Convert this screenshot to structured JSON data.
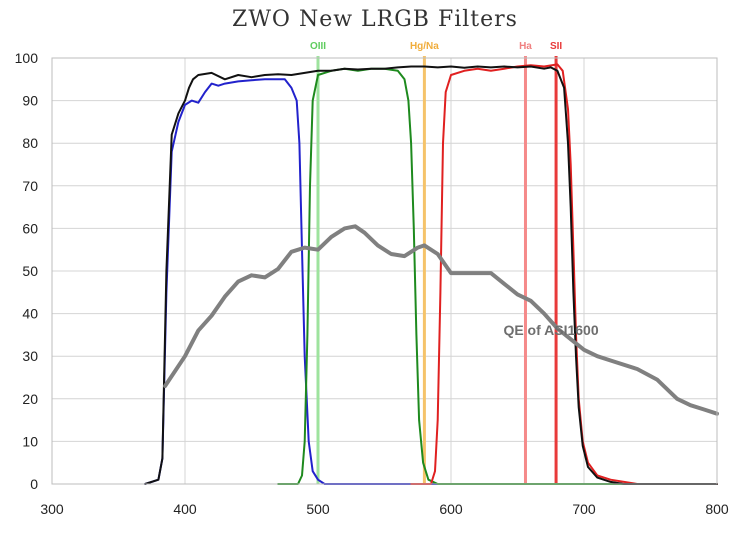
{
  "chart_data": {
    "type": "line",
    "title": "ZWO New LRGB Filters",
    "xlabel": "",
    "ylabel": "",
    "xlim": [
      300,
      800
    ],
    "ylim": [
      0,
      100
    ],
    "x_ticks": [
      300,
      400,
      500,
      600,
      700,
      800
    ],
    "y_ticks": [
      0,
      10,
      20,
      30,
      40,
      50,
      60,
      70,
      80,
      90,
      100
    ],
    "grid": true,
    "legend": "none",
    "series": [
      {
        "color": "#2222cc",
        "points": [
          [
            370,
            0
          ],
          [
            380,
            1
          ],
          [
            383,
            6
          ],
          [
            386,
            45
          ],
          [
            390,
            78
          ],
          [
            395,
            85
          ],
          [
            400,
            89
          ],
          [
            405,
            90
          ],
          [
            410,
            89.5
          ],
          [
            415,
            92
          ],
          [
            420,
            94
          ],
          [
            425,
            93.5
          ],
          [
            430,
            94
          ],
          [
            440,
            94.5
          ],
          [
            450,
            94.8
          ],
          [
            460,
            95
          ],
          [
            470,
            95
          ],
          [
            475,
            95
          ],
          [
            480,
            93
          ],
          [
            484,
            90
          ],
          [
            486,
            80
          ],
          [
            488,
            55
          ],
          [
            490,
            30
          ],
          [
            493,
            10
          ],
          [
            496,
            3
          ],
          [
            500,
            1
          ],
          [
            505,
            0
          ],
          [
            800,
            0
          ]
        ]
      },
      {
        "color": "#1e8a1e",
        "points": [
          [
            470,
            0
          ],
          [
            485,
            0
          ],
          [
            488,
            2
          ],
          [
            490,
            10
          ],
          [
            492,
            35
          ],
          [
            494,
            70
          ],
          [
            496,
            90
          ],
          [
            500,
            96
          ],
          [
            510,
            97
          ],
          [
            520,
            97.5
          ],
          [
            530,
            97
          ],
          [
            540,
            97.5
          ],
          [
            550,
            97.5
          ],
          [
            560,
            97
          ],
          [
            565,
            95
          ],
          [
            568,
            90
          ],
          [
            570,
            80
          ],
          [
            572,
            60
          ],
          [
            574,
            35
          ],
          [
            576,
            15
          ],
          [
            579,
            5
          ],
          [
            583,
            1
          ],
          [
            590,
            0
          ],
          [
            800,
            0
          ]
        ]
      },
      {
        "color": "#e02020",
        "points": [
          [
            570,
            0
          ],
          [
            585,
            0
          ],
          [
            588,
            3
          ],
          [
            590,
            15
          ],
          [
            592,
            45
          ],
          [
            594,
            80
          ],
          [
            596,
            92
          ],
          [
            600,
            96
          ],
          [
            610,
            97
          ],
          [
            620,
            97.5
          ],
          [
            630,
            97
          ],
          [
            640,
            97.5
          ],
          [
            650,
            98
          ],
          [
            660,
            98.3
          ],
          [
            670,
            98
          ],
          [
            680,
            98.5
          ],
          [
            684,
            97
          ],
          [
            688,
            88
          ],
          [
            690,
            75
          ],
          [
            692,
            55
          ],
          [
            694,
            35
          ],
          [
            696,
            20
          ],
          [
            699,
            10
          ],
          [
            703,
            5
          ],
          [
            710,
            2
          ],
          [
            720,
            1
          ],
          [
            740,
            0
          ],
          [
            800,
            0
          ]
        ]
      },
      {
        "color": "#111111",
        "points": [
          [
            370,
            0
          ],
          [
            380,
            1
          ],
          [
            383,
            6
          ],
          [
            386,
            50
          ],
          [
            390,
            82
          ],
          [
            395,
            87
          ],
          [
            400,
            90
          ],
          [
            403,
            93
          ],
          [
            406,
            95
          ],
          [
            410,
            96
          ],
          [
            420,
            96.5
          ],
          [
            430,
            95
          ],
          [
            440,
            96
          ],
          [
            450,
            95.5
          ],
          [
            460,
            96
          ],
          [
            470,
            96.2
          ],
          [
            480,
            96
          ],
          [
            490,
            96.5
          ],
          [
            500,
            97
          ],
          [
            510,
            97
          ],
          [
            520,
            97.5
          ],
          [
            530,
            97.3
          ],
          [
            540,
            97.5
          ],
          [
            550,
            97.5
          ],
          [
            560,
            97.8
          ],
          [
            570,
            98
          ],
          [
            580,
            98
          ],
          [
            590,
            97.8
          ],
          [
            600,
            98
          ],
          [
            610,
            97.7
          ],
          [
            620,
            98
          ],
          [
            630,
            97.8
          ],
          [
            640,
            98
          ],
          [
            650,
            97.8
          ],
          [
            660,
            98
          ],
          [
            670,
            97.5
          ],
          [
            675,
            97.8
          ],
          [
            680,
            97
          ],
          [
            685,
            93
          ],
          [
            688,
            80
          ],
          [
            690,
            65
          ],
          [
            692,
            45
          ],
          [
            694,
            30
          ],
          [
            696,
            18
          ],
          [
            699,
            9
          ],
          [
            703,
            4
          ],
          [
            710,
            1.5
          ],
          [
            720,
            0.5
          ],
          [
            730,
            0
          ],
          [
            800,
            0
          ]
        ]
      },
      {
        "color": "#808080",
        "points": [
          [
            385,
            23
          ],
          [
            400,
            30
          ],
          [
            410,
            36
          ],
          [
            420,
            39.5
          ],
          [
            430,
            44
          ],
          [
            440,
            47.5
          ],
          [
            450,
            49
          ],
          [
            460,
            48.5
          ],
          [
            470,
            50.5
          ],
          [
            480,
            54.5
          ],
          [
            490,
            55.5
          ],
          [
            500,
            55
          ],
          [
            510,
            58
          ],
          [
            520,
            60
          ],
          [
            528,
            60.5
          ],
          [
            535,
            59
          ],
          [
            545,
            56
          ],
          [
            555,
            54
          ],
          [
            565,
            53.5
          ],
          [
            575,
            55.5
          ],
          [
            580,
            56
          ],
          [
            590,
            54
          ],
          [
            600,
            49.5
          ],
          [
            610,
            49.5
          ],
          [
            620,
            49.5
          ],
          [
            630,
            49.5
          ],
          [
            640,
            47
          ],
          [
            650,
            44.5
          ],
          [
            660,
            43
          ],
          [
            670,
            40
          ],
          [
            680,
            36.5
          ],
          [
            690,
            34
          ],
          [
            700,
            31.5
          ],
          [
            710,
            30
          ],
          [
            720,
            29
          ],
          [
            740,
            27
          ],
          [
            755,
            24.5
          ],
          [
            770,
            20
          ],
          [
            780,
            18.5
          ],
          [
            790,
            17.5
          ],
          [
            800,
            16.5
          ]
        ]
      }
    ],
    "markers": [
      {
        "label": "OIII",
        "x": 500,
        "color": "#9ee39e",
        "label_color": "#5fcc5f"
      },
      {
        "label": "Hg/Na",
        "x": 580,
        "color": "#f5c36a",
        "label_color": "#f0ad3c"
      },
      {
        "label": "Ha",
        "x": 656,
        "color": "#f58a8a",
        "label_color": "#f08080"
      },
      {
        "label": "SII",
        "x": 679,
        "color": "#e83a3a",
        "label_color": "#e83a3a"
      }
    ],
    "annotations": [
      {
        "text": "QE of ASI1600",
        "x": 711,
        "y": 35
      }
    ]
  }
}
